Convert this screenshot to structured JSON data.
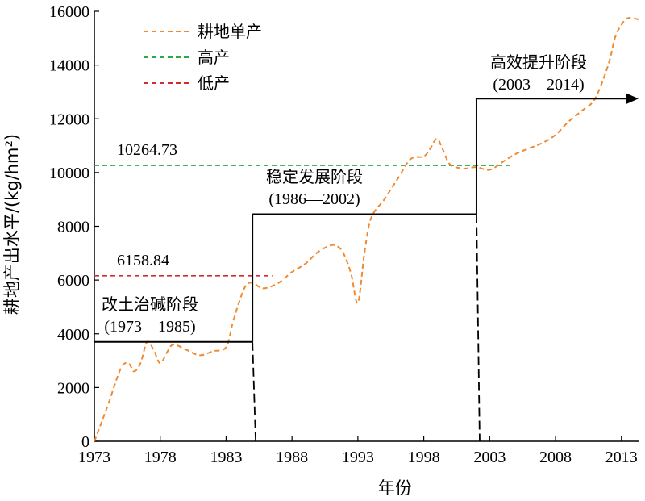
{
  "chart_data": {
    "type": "line",
    "xlabel": "年份",
    "ylabel": "耕地产出水平/(kg/hm²)",
    "xlim": [
      1973,
      2014.3
    ],
    "ylim": [
      0,
      16000
    ],
    "x_ticks": [
      1973,
      1978,
      1983,
      1988,
      1993,
      1998,
      2003,
      2008,
      2013
    ],
    "y_ticks": [
      0,
      2000,
      4000,
      6000,
      8000,
      10000,
      12000,
      14000,
      16000
    ],
    "legend_position": "top-left",
    "series": [
      {
        "name": "耕地单产",
        "color": "#f08a30",
        "style": "dashed",
        "x": [
          1973,
          1974,
          1975,
          1975.6,
          1976,
          1976.5,
          1977,
          1977.5,
          1978,
          1978.5,
          1979,
          1980,
          1981,
          1982,
          1983,
          1983.5,
          1984,
          1984.5,
          1985,
          1985.5,
          1986,
          1987,
          1988,
          1989,
          1990,
          1991,
          1991.6,
          1992,
          1992.5,
          1993,
          1993.5,
          1994,
          1995,
          1996,
          1997,
          1998,
          1998.5,
          1999,
          1999.5,
          2000,
          2001,
          2002,
          2003,
          2004,
          2005,
          2006,
          2007,
          2008,
          2009,
          2010,
          2011,
          2012,
          2012.5,
          2013,
          2013.5,
          2014.3
        ],
        "y": [
          0,
          1300,
          2700,
          2900,
          2600,
          2900,
          3700,
          3400,
          2900,
          3300,
          3600,
          3400,
          3200,
          3350,
          3500,
          4400,
          5200,
          5800,
          5900,
          5750,
          5700,
          5900,
          6300,
          6600,
          7050,
          7300,
          7200,
          6900,
          6200,
          5150,
          7000,
          8300,
          9000,
          9750,
          10500,
          10600,
          10900,
          11250,
          10800,
          10300,
          10150,
          10200,
          10100,
          10400,
          10700,
          10900,
          11100,
          11400,
          11900,
          12300,
          12750,
          14000,
          15000,
          15500,
          15750,
          15700
        ]
      }
    ],
    "reference_lines": [
      {
        "name": "高产",
        "value": 10264.73,
        "label": "10264.73",
        "color": "#2ba84a",
        "x_start": 1973,
        "x_end": 2004.5
      },
      {
        "name": "低产",
        "value": 6158.84,
        "label": "6158.84",
        "color": "#d42c2c",
        "x_start": 1973,
        "x_end": 1986.5
      }
    ],
    "stages": [
      {
        "title": "改土治碱阶段",
        "period": "(1973—1985)",
        "x_start": 1973,
        "x_end": 1985,
        "level": 3700
      },
      {
        "title": "稳定发展阶段",
        "period": "(1986—2002)",
        "x_start": 1985,
        "x_end": 2002,
        "level": 8450
      },
      {
        "title": "高效提升阶段",
        "period": "(2003—2014)",
        "x_start": 2002,
        "x_end": 2014.3,
        "level": 12750
      }
    ]
  }
}
